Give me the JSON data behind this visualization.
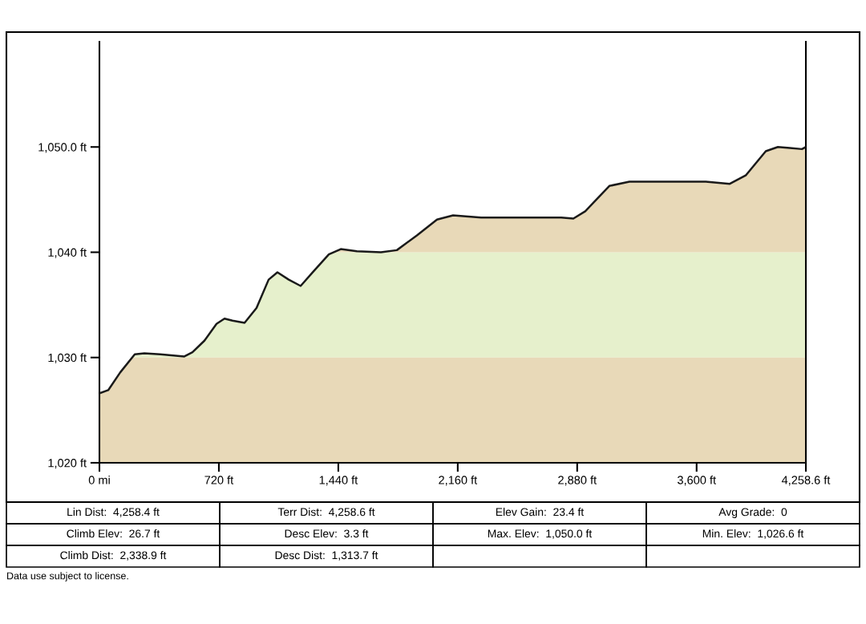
{
  "chart_data": {
    "type": "area",
    "x": [
      0,
      53,
      126,
      213,
      271,
      367,
      512,
      561,
      633,
      706,
      754,
      802,
      875,
      947,
      1020,
      1073,
      1141,
      1213,
      1286,
      1383,
      1455,
      1552,
      1697,
      1793,
      1914,
      2035,
      2132,
      2301,
      2784,
      2857,
      2929,
      3074,
      3195,
      3655,
      3800,
      3896,
      4017,
      4090,
      4162,
      4235,
      4258.6
    ],
    "series": [
      {
        "color": "#e8d9b8",
        "values": [
          1026.6,
          1026.9,
          1028.6,
          1030.3,
          1030.4,
          1030.3,
          1030.1,
          1030.5,
          1031.6,
          1033.2,
          1033.7,
          1033.5,
          1033.3,
          1034.7,
          1037.4,
          1038.1,
          1037.4,
          1036.8,
          1038.1,
          1039.8,
          1040.3,
          1040.1,
          1040.0,
          1040.2,
          1041.6,
          1043.1,
          1043.5,
          1043.3,
          1043.3,
          1043.2,
          1043.9,
          1046.3,
          1046.7,
          1046.7,
          1046.5,
          1047.3,
          1049.6,
          1050.0,
          1049.9,
          1049.8,
          1050.0
        ]
      }
    ],
    "xlim": [
      0,
      4258.6
    ],
    "ylim": [
      1020,
      1060
    ],
    "xticks": [
      {
        "value": 0,
        "label": "0 mi"
      },
      {
        "value": 720,
        "label": "720 ft"
      },
      {
        "value": 1440,
        "label": "1,440 ft"
      },
      {
        "value": 2160,
        "label": "2,160 ft"
      },
      {
        "value": 2880,
        "label": "2,880 ft"
      },
      {
        "value": 3600,
        "label": "3,600 ft"
      },
      {
        "value": 4258.6,
        "label": "4,258.6 ft"
      }
    ],
    "yticks": [
      {
        "value": 1020,
        "label": "1,020 ft"
      },
      {
        "value": 1030,
        "label": "1,030 ft"
      },
      {
        "value": 1040,
        "label": "1,040 ft"
      },
      {
        "value": 1050,
        "label": "1,050.0 ft"
      }
    ],
    "bands": [
      {
        "axis": "y",
        "from": 1030,
        "to": 1040,
        "color": "#e6f0cc"
      }
    ],
    "grid": false,
    "legend": false,
    "annotations": [
      "Lin Dist:  4,258.4 ft",
      "Terr Dist:  4,258.6 ft",
      "Elev Gain:  23.4 ft",
      "Avg Grade:  0",
      "Climb Elev:  26.7 ft",
      "Desc Elev:  3.3 ft",
      "Max. Elev:  1,050.0 ft",
      "Min. Elev:  1,026.6 ft",
      "Climb Dist:  2,338.9 ft",
      "Desc Dist:  1,313.7 ft",
      "Data use subject to license."
    ]
  }
}
